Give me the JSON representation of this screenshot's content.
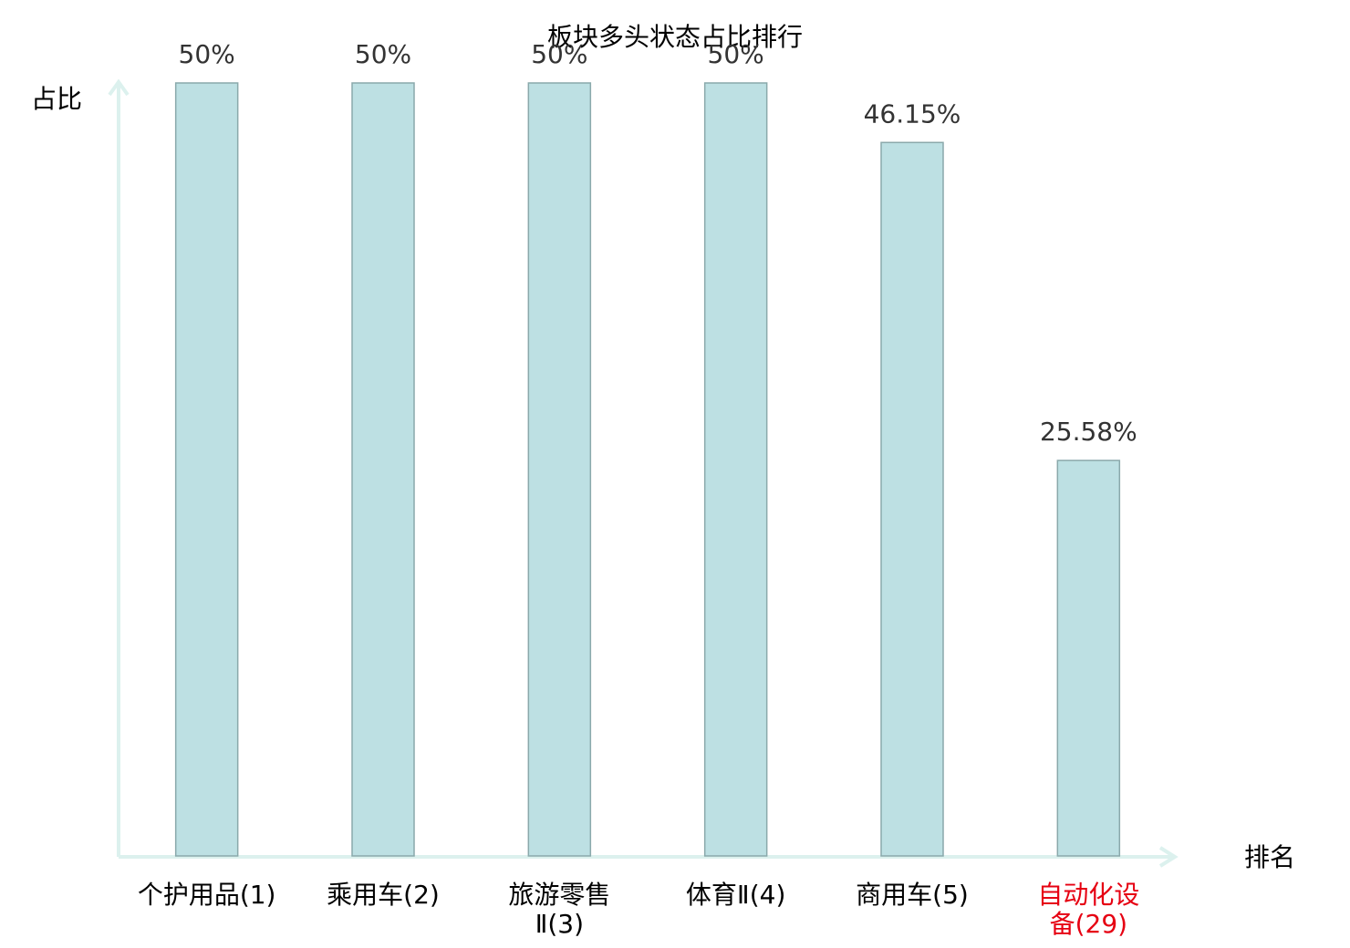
{
  "chart_data": {
    "type": "bar",
    "title": "板块多头状态占比排行",
    "y_label": "占比",
    "x_label": "排名",
    "categories": [
      "个护用品(1)",
      "乘用车(2)",
      "旅游零售\nⅡ(3)",
      "体育Ⅱ(4)",
      "商用车(5)",
      "自动化设\n备(29)"
    ],
    "label_colors": [
      "#000000",
      "#000000",
      "#000000",
      "#000000",
      "#000000",
      "#e60012"
    ],
    "values": [
      50,
      50,
      50,
      50,
      46.15,
      25.58
    ],
    "value_labels": [
      "50%",
      "50%",
      "50%",
      "50%",
      "46.15%",
      "25.58%"
    ],
    "color": "#bde0e3",
    "ylim": [
      0,
      50
    ]
  }
}
